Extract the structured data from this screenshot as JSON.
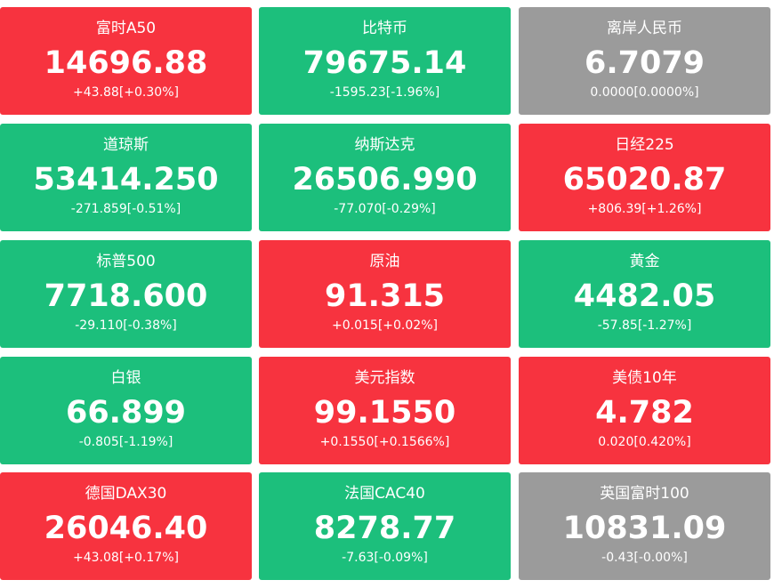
{
  "tiles": [
    {
      "name": "富时A50",
      "price": "14696.88",
      "change": "+43.88[+0.30%]",
      "color": "#f7333f"
    },
    {
      "name": "比特币",
      "price": "79675.14",
      "change": "-1595.23[-1.96%]",
      "color": "#1cbf7c"
    },
    {
      "name": "离岸人民币",
      "price": "6.7079",
      "change": "0.0000[0.0000%]",
      "color": "#9b9b9b"
    },
    {
      "name": "道琼斯",
      "price": "53414.250",
      "change": "-271.859[-0.51%]",
      "color": "#1cbf7c"
    },
    {
      "name": "纳斯达克",
      "price": "26506.990",
      "change": "-77.070[-0.29%]",
      "color": "#1cbf7c"
    },
    {
      "name": "日经225",
      "price": "65020.87",
      "change": "+806.39[+1.26%]",
      "color": "#f7333f"
    },
    {
      "name": "标普500",
      "price": "7718.600",
      "change": "-29.110[-0.38%]",
      "color": "#1cbf7c"
    },
    {
      "name": "原油",
      "price": "91.315",
      "change": "+0.015[+0.02%]",
      "color": "#f7333f"
    },
    {
      "name": "黄金",
      "price": "4482.05",
      "change": "-57.85[-1.27%]",
      "color": "#1cbf7c"
    },
    {
      "name": "白银",
      "price": "66.899",
      "change": "-0.805[-1.19%]",
      "color": "#1cbf7c"
    },
    {
      "name": "美元指数",
      "price": "99.1550",
      "change": "+0.1550[+0.1566%]",
      "color": "#f7333f"
    },
    {
      "name": "美债10年",
      "price": "4.782",
      "change": "0.020[0.420%]",
      "color": "#f7333f"
    },
    {
      "name": "德国DAX30",
      "price": "26046.40",
      "change": "+43.08[+0.17%]",
      "color": "#f7333f"
    },
    {
      "name": "法国CAC40",
      "price": "8278.77",
      "change": "-7.63[-0.09%]",
      "color": "#1cbf7c"
    },
    {
      "name": "英国富时100",
      "price": "10831.09",
      "change": "-0.43[-0.00%]",
      "color": "#9b9b9b"
    }
  ]
}
